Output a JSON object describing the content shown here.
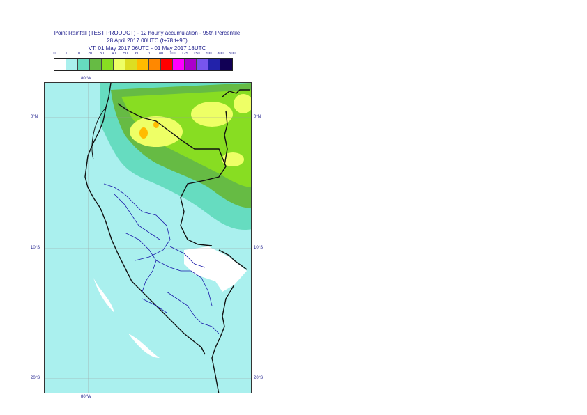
{
  "header": {
    "line1": "Point Rainfall (TEST PRODUCT) - 12 hourly accumulation - 95th Percentile",
    "line2": "28 April 2017 00UTC (t+78,t+90)",
    "line3": "VT: 01 May 2017 06UTC - 01 May 2017 18UTC"
  },
  "legend": {
    "labels": [
      "0",
      "1",
      "10",
      "20",
      "30",
      "40",
      "50",
      "60",
      "70",
      "80",
      "100",
      "125",
      "150",
      "200",
      "300",
      "500"
    ],
    "colors": [
      "#ffffff",
      "#aaf0ee",
      "#66dcc0",
      "#66bb44",
      "#88dd22",
      "#eeff66",
      "#dddd22",
      "#ffbb00",
      "#ff8800",
      "#ff0000",
      "#ff00ff",
      "#aa00cc",
      "#7755ee",
      "#2222aa",
      "#110055"
    ]
  },
  "map": {
    "lon_label_top": "80°W",
    "lon_label_bottom": "80°W",
    "lat_labels": [
      "0°N",
      "10°S",
      "20°S"
    ]
  },
  "colors": {
    "light_cyan": "#aaf0ee",
    "teal": "#66dcc0",
    "green": "#66bb44",
    "light_green": "#88dd22",
    "yellow": "#eeff66",
    "orange": "#ffbb00",
    "border_black": "#111111",
    "border_blue": "#1a1aaa",
    "grid": "#9a9a9a"
  }
}
